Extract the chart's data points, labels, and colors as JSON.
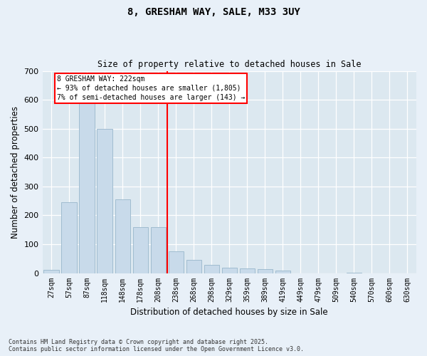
{
  "title1": "8, GRESHAM WAY, SALE, M33 3UY",
  "title2": "Size of property relative to detached houses in Sale",
  "xlabel": "Distribution of detached houses by size in Sale",
  "ylabel": "Number of detached properties",
  "bar_color": "#c8daea",
  "bar_edge_color": "#a0bcd0",
  "background_color": "#dce8f0",
  "fig_background_color": "#e8f0f8",
  "bins": [
    "27sqm",
    "57sqm",
    "87sqm",
    "118sqm",
    "148sqm",
    "178sqm",
    "208sqm",
    "238sqm",
    "268sqm",
    "298sqm",
    "329sqm",
    "359sqm",
    "389sqm",
    "419sqm",
    "449sqm",
    "479sqm",
    "509sqm",
    "540sqm",
    "570sqm",
    "600sqm",
    "630sqm"
  ],
  "values": [
    10,
    245,
    590,
    500,
    255,
    160,
    160,
    75,
    45,
    28,
    18,
    15,
    13,
    8,
    0,
    0,
    0,
    2,
    0,
    0,
    0
  ],
  "ylim": [
    0,
    700
  ],
  "yticks": [
    0,
    100,
    200,
    300,
    400,
    500,
    600,
    700
  ],
  "vline_label": "8 GRESHAM WAY: 222sqm",
  "annotation_smaller": "← 93% of detached houses are smaller (1,805)",
  "annotation_larger": "7% of semi-detached houses are larger (143) →",
  "footer1": "Contains HM Land Registry data © Crown copyright and database right 2025.",
  "footer2": "Contains public sector information licensed under the Open Government Licence v3.0."
}
